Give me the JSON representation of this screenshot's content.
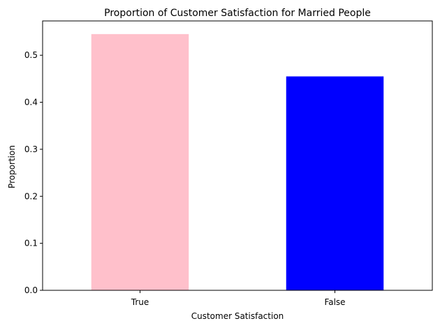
{
  "chart_data": {
    "type": "bar",
    "title": "Proportion of Customer Satisfaction for Married People",
    "xlabel": "Customer Satisfaction",
    "ylabel": "Proportion",
    "categories": [
      "True",
      "False"
    ],
    "values": [
      0.545,
      0.455
    ],
    "colors": [
      "#ffc0cb",
      "#0000ff"
    ],
    "ylim": [
      0,
      0.573
    ],
    "yticks": [
      0.0,
      0.1,
      0.2,
      0.3,
      0.4,
      0.5
    ],
    "ytick_labels": [
      "0.0",
      "0.1",
      "0.2",
      "0.3",
      "0.4",
      "0.5"
    ],
    "grid": false,
    "legend": "none"
  }
}
